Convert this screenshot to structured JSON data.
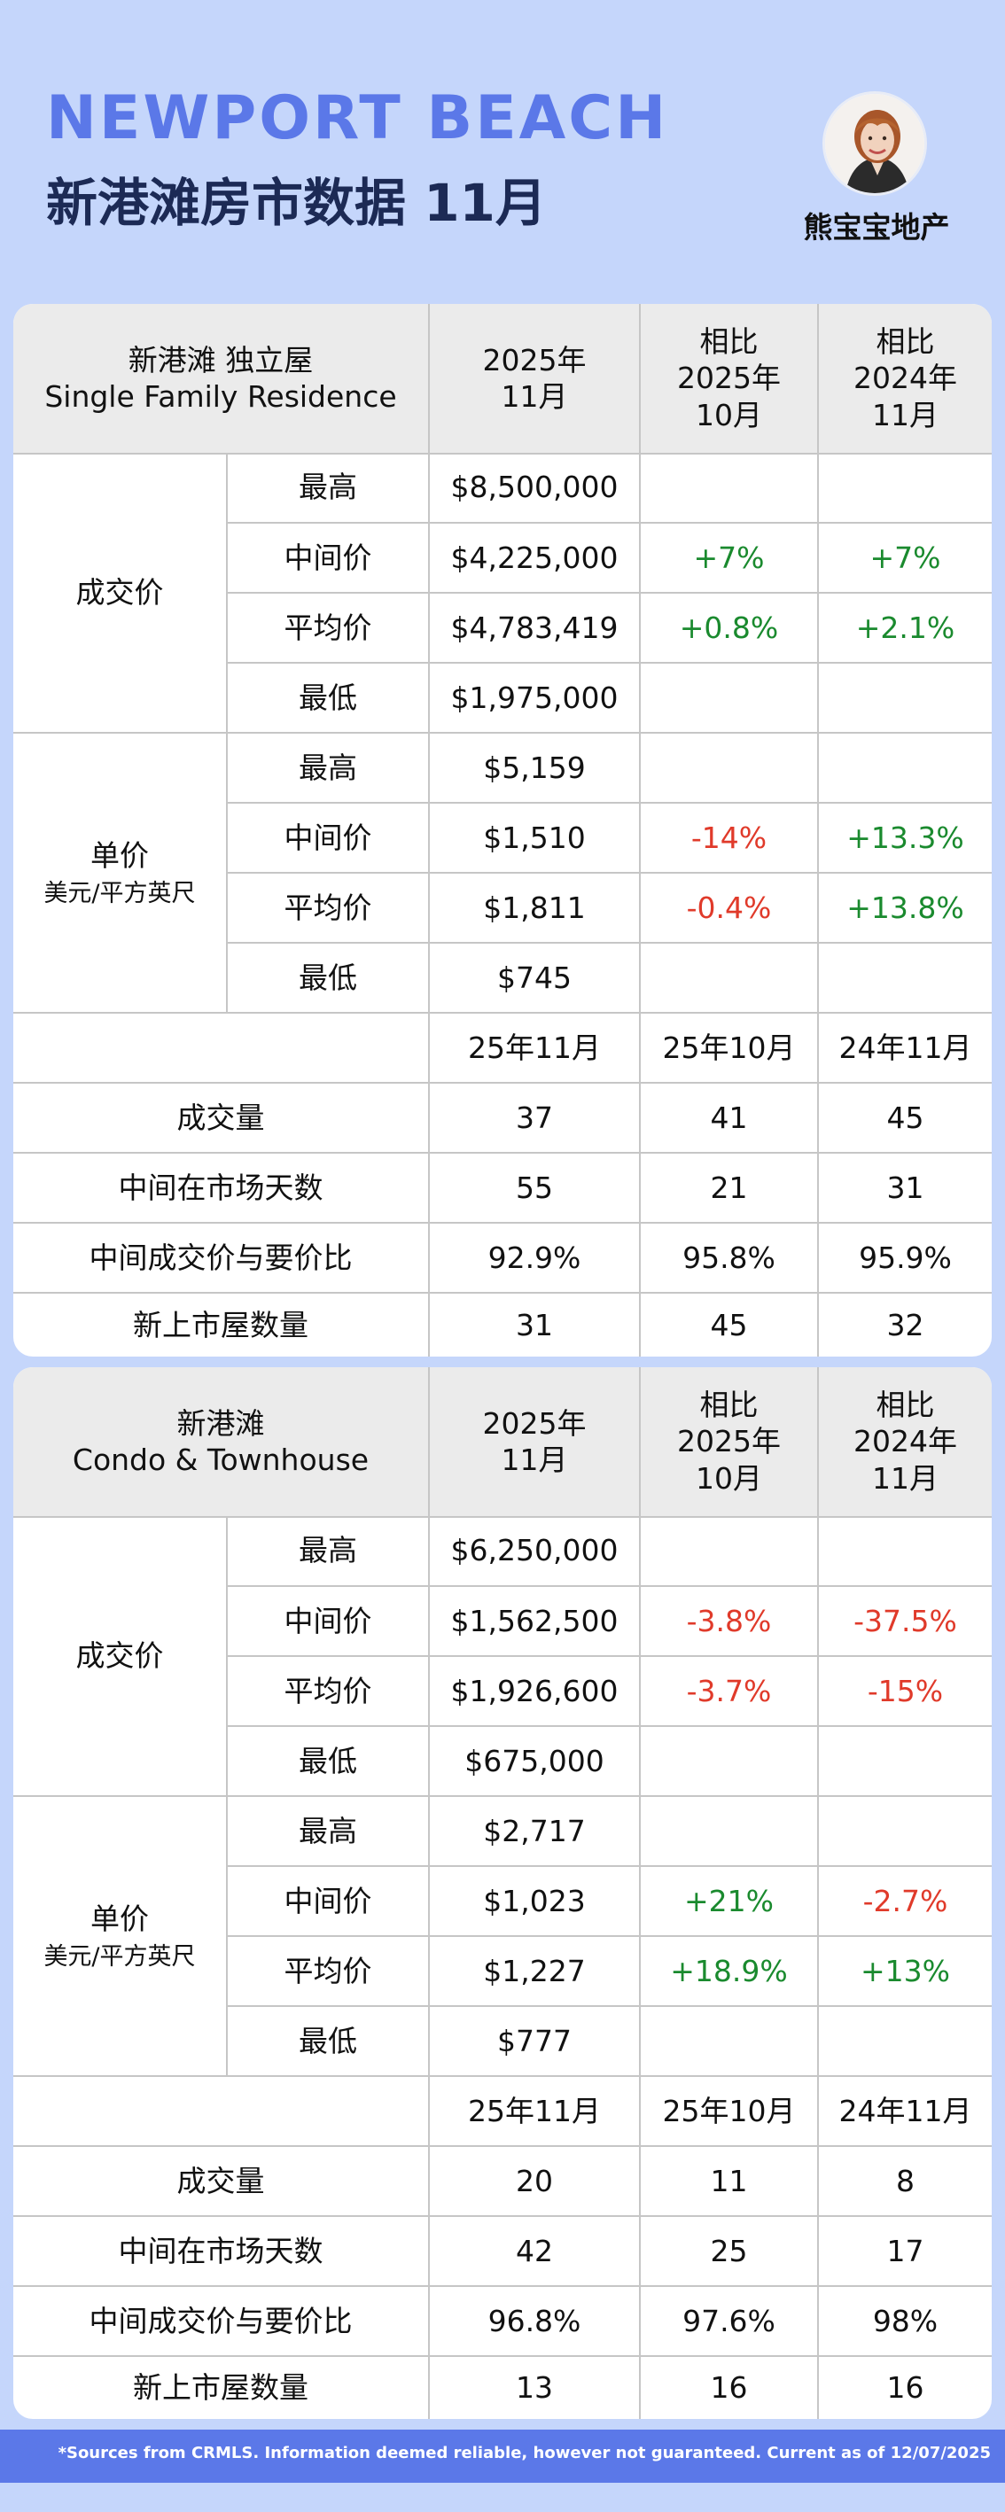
{
  "header": {
    "title_en": "NEWPORT BEACH",
    "title_cn": "新港滩房市数据 11月",
    "brand": "熊宝宝地产"
  },
  "sections": [
    {
      "head": {
        "col1_line1": "新港滩  独立屋",
        "col1_line2": "Single Family Residence",
        "col2_line1": "2025年",
        "col2_line2": "11月",
        "col3_line1": "相比",
        "col3_line2": "2025年",
        "col3_line3": "10月",
        "col4_line1": "相比",
        "col4_line2": "2024年",
        "col4_line3": "11月"
      },
      "price_group": {
        "label": "成交价",
        "rows": [
          {
            "label": "最高",
            "value": "$8,500,000",
            "mom": "",
            "yoy": ""
          },
          {
            "label": "中间价",
            "value": "$4,225,000",
            "mom": "+7%",
            "yoy": "+7%"
          },
          {
            "label": "平均价",
            "value": "$4,783,419",
            "mom": "+0.8%",
            "yoy": "+2.1%"
          },
          {
            "label": "最低",
            "value": "$1,975,000",
            "mom": "",
            "yoy": ""
          }
        ]
      },
      "unit_group": {
        "label": "单价",
        "sublabel": "美元/平方英尺",
        "rows": [
          {
            "label": "最高",
            "value": "$5,159",
            "mom": "",
            "yoy": ""
          },
          {
            "label": "中间价",
            "value": "$1,510",
            "mom": "-14%",
            "yoy": "+13.3%"
          },
          {
            "label": "平均价",
            "value": "$1,811",
            "mom": "-0.4%",
            "yoy": "+13.8%"
          },
          {
            "label": "最低",
            "value": "$745",
            "mom": "",
            "yoy": ""
          }
        ]
      },
      "period_head": {
        "c2": "25年11月",
        "c3": "25年10月",
        "c4": "24年11月"
      },
      "stats": [
        {
          "label": "成交量",
          "c2": "37",
          "c3": "41",
          "c4": "45"
        },
        {
          "label": "中间在市场天数",
          "c2": "55",
          "c3": "21",
          "c4": "31"
        },
        {
          "label": "中间成交价与要价比",
          "c2": "92.9%",
          "c3": "95.8%",
          "c4": "95.9%"
        },
        {
          "label": "新上市屋数量",
          "c2": "31",
          "c3": "45",
          "c4": "32"
        }
      ]
    },
    {
      "head": {
        "col1_line1": "新港滩",
        "col1_line2": "Condo & Townhouse",
        "col2_line1": "2025年",
        "col2_line2": "11月",
        "col3_line1": "相比",
        "col3_line2": "2025年",
        "col3_line3": "10月",
        "col4_line1": "相比",
        "col4_line2": "2024年",
        "col4_line3": "11月"
      },
      "price_group": {
        "label": "成交价",
        "rows": [
          {
            "label": "最高",
            "value": "$6,250,000",
            "mom": "",
            "yoy": ""
          },
          {
            "label": "中间价",
            "value": "$1,562,500",
            "mom": "-3.8%",
            "yoy": "-37.5%"
          },
          {
            "label": "平均价",
            "value": "$1,926,600",
            "mom": "-3.7%",
            "yoy": "-15%"
          },
          {
            "label": "最低",
            "value": "$675,000",
            "mom": "",
            "yoy": ""
          }
        ]
      },
      "unit_group": {
        "label": "单价",
        "sublabel": "美元/平方英尺",
        "rows": [
          {
            "label": "最高",
            "value": "$2,717",
            "mom": "",
            "yoy": ""
          },
          {
            "label": "中间价",
            "value": "$1,023",
            "mom": "+21%",
            "yoy": "-2.7%"
          },
          {
            "label": "平均价",
            "value": "$1,227",
            "mom": "+18.9%",
            "yoy": "+13%"
          },
          {
            "label": "最低",
            "value": "$777",
            "mom": "",
            "yoy": ""
          }
        ]
      },
      "period_head": {
        "c2": "25年11月",
        "c3": "25年10月",
        "c4": "24年11月"
      },
      "stats": [
        {
          "label": "成交量",
          "c2": "20",
          "c3": "11",
          "c4": "8"
        },
        {
          "label": "中间在市场天数",
          "c2": "42",
          "c3": "25",
          "c4": "17"
        },
        {
          "label": "中间成交价与要价比",
          "c2": "96.8%",
          "c3": "97.6%",
          "c4": "98%"
        },
        {
          "label": "新上市屋数量",
          "c2": "13",
          "c3": "16",
          "c4": "16"
        }
      ]
    }
  ],
  "colors": {
    "background": "#c5d6fb",
    "accent": "#5b78e8",
    "title_dark": "#1c2a55",
    "positive": "#1a8a2e",
    "negative": "#e03a2a"
  },
  "footer": {
    "text": "*Sources from CRMLS. Information deemed reliable, however not guaranteed. Current as of 12/07/2025"
  }
}
